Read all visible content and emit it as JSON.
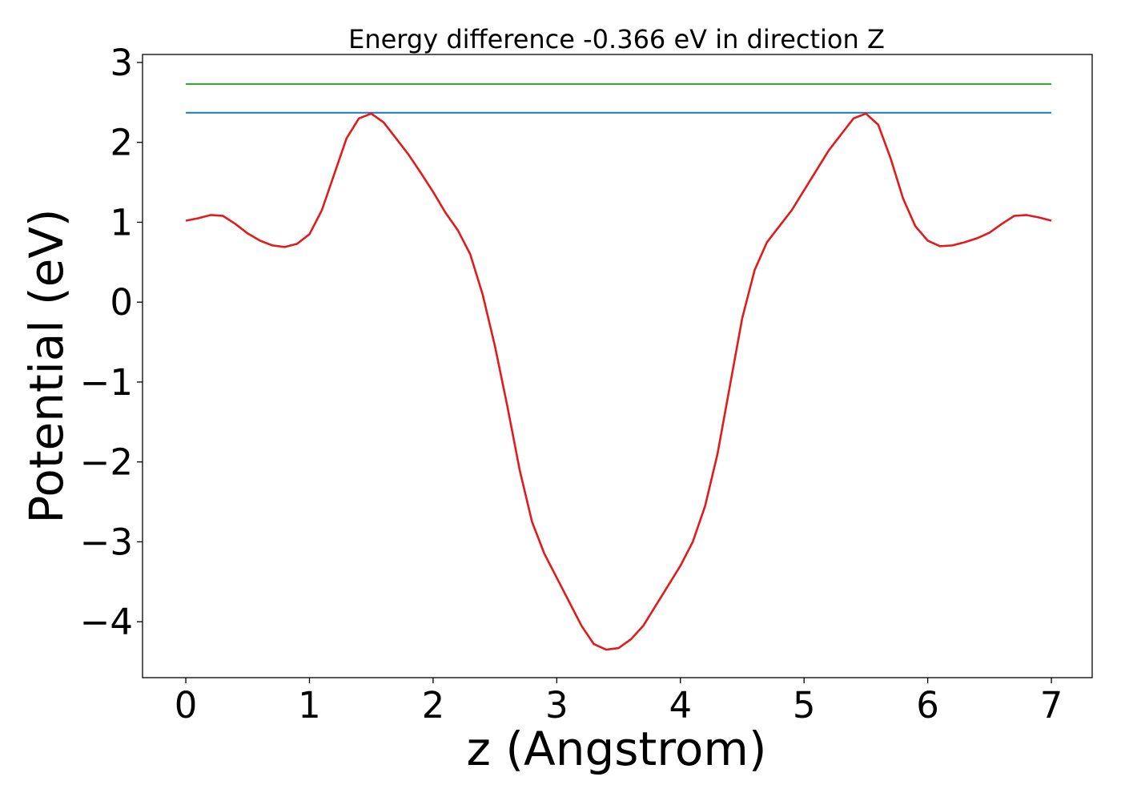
{
  "chart_data": {
    "type": "line",
    "title": "Energy difference -0.366 eV in direction Z",
    "xlabel": "z (Angstrom)",
    "ylabel": "Potential (eV)",
    "xlim": [
      -0.35,
      7.33
    ],
    "ylim": [
      -4.7,
      3.1
    ],
    "xticks": [
      0,
      1,
      2,
      3,
      4,
      5,
      6,
      7
    ],
    "xtick_labels": [
      "0",
      "1",
      "2",
      "3",
      "4",
      "5",
      "6",
      "7"
    ],
    "yticks": [
      3,
      2,
      1,
      0,
      -1,
      -2,
      -3,
      -4
    ],
    "ytick_labels": [
      "3",
      "2",
      "1",
      "0",
      "−1",
      "−2",
      "−3",
      "−4"
    ],
    "grid": false,
    "legend": "none",
    "series": [
      {
        "color": "#2ca02c",
        "x": [
          0,
          7
        ],
        "y": [
          2.73,
          2.73
        ]
      },
      {
        "color": "#1f77b4",
        "x": [
          0,
          7
        ],
        "y": [
          2.37,
          2.37
        ]
      },
      {
        "color": "#e31a1c",
        "x": [
          0.0,
          0.1,
          0.2,
          0.3,
          0.4,
          0.5,
          0.6,
          0.7,
          0.8,
          0.9,
          1.0,
          1.1,
          1.2,
          1.3,
          1.4,
          1.5,
          1.6,
          1.7,
          1.8,
          1.9,
          2.0,
          2.1,
          2.2,
          2.3,
          2.4,
          2.5,
          2.6,
          2.7,
          2.8,
          2.9,
          3.0,
          3.1,
          3.2,
          3.3,
          3.4,
          3.5,
          3.6,
          3.7,
          3.8,
          3.9,
          4.0,
          4.1,
          4.2,
          4.3,
          4.4,
          4.5,
          4.6,
          4.7,
          4.8,
          4.9,
          5.0,
          5.1,
          5.2,
          5.3,
          5.4,
          5.5,
          5.6,
          5.7,
          5.8,
          5.9,
          6.0,
          6.1,
          6.2,
          6.3,
          6.4,
          6.5,
          6.6,
          6.7,
          6.8,
          6.9,
          7.0
        ],
        "y": [
          1.02,
          1.05,
          1.09,
          1.08,
          0.98,
          0.86,
          0.77,
          0.71,
          0.69,
          0.73,
          0.85,
          1.15,
          1.6,
          2.05,
          2.3,
          2.36,
          2.25,
          2.05,
          1.85,
          1.62,
          1.38,
          1.12,
          0.9,
          0.6,
          0.1,
          -0.55,
          -1.3,
          -2.1,
          -2.75,
          -3.15,
          -3.45,
          -3.75,
          -4.05,
          -4.28,
          -4.35,
          -4.33,
          -4.22,
          -4.05,
          -3.8,
          -3.55,
          -3.3,
          -3.0,
          -2.55,
          -1.9,
          -1.05,
          -0.2,
          0.4,
          0.75,
          0.95,
          1.15,
          1.4,
          1.65,
          1.9,
          2.1,
          2.3,
          2.36,
          2.22,
          1.8,
          1.3,
          0.95,
          0.77,
          0.7,
          0.71,
          0.75,
          0.8,
          0.87,
          0.98,
          1.08,
          1.09,
          1.06,
          1.02
        ]
      }
    ]
  }
}
